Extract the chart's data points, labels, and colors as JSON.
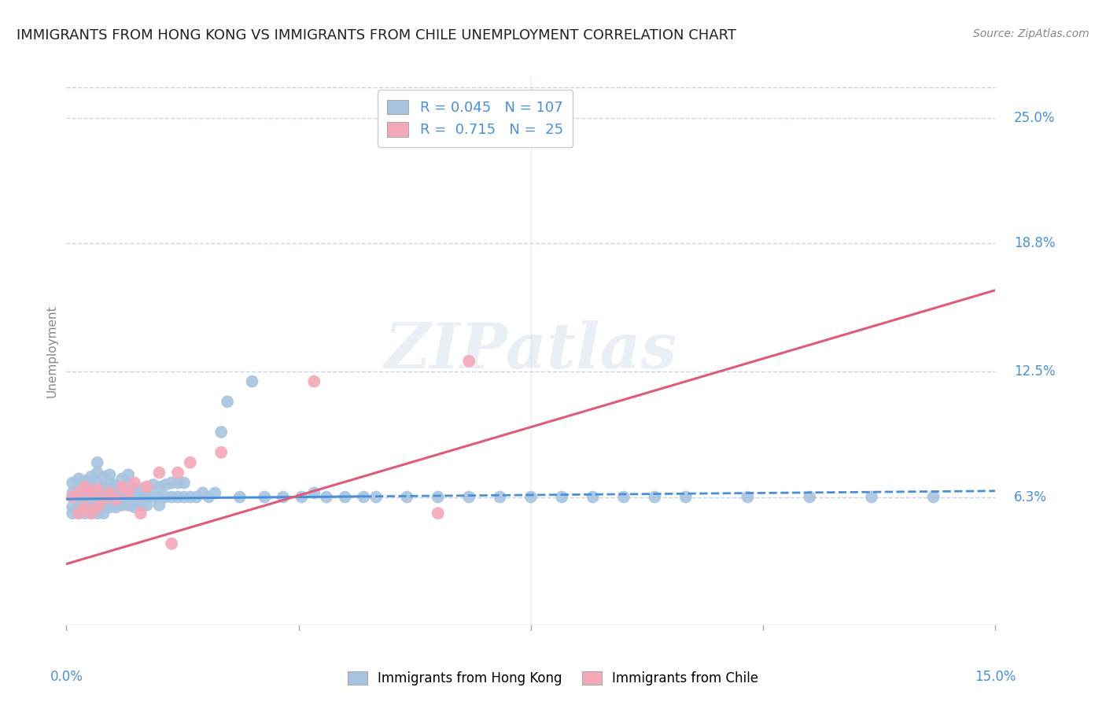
{
  "title": "IMMIGRANTS FROM HONG KONG VS IMMIGRANTS FROM CHILE UNEMPLOYMENT CORRELATION CHART",
  "source": "Source: ZipAtlas.com",
  "ylabel": "Unemployment",
  "ytick_labels": [
    "6.3%",
    "12.5%",
    "18.8%",
    "25.0%"
  ],
  "ytick_values": [
    0.063,
    0.125,
    0.188,
    0.25
  ],
  "xmin": 0.0,
  "xmax": 0.15,
  "ymin": 0.0,
  "ymax": 0.27,
  "color_hk": "#a8c4e0",
  "color_chile": "#f4a8b8",
  "color_hk_line": "#4a90d9",
  "color_chile_line": "#e05a7a",
  "color_axis_text": "#4a90d9",
  "watermark_text": "ZIPatlas",
  "hk_R": 0.045,
  "hk_N": 107,
  "chile_R": 0.715,
  "chile_N": 25,
  "hk_x": [
    0.001,
    0.001,
    0.001,
    0.001,
    0.001,
    0.002,
    0.002,
    0.002,
    0.002,
    0.002,
    0.003,
    0.003,
    0.003,
    0.003,
    0.003,
    0.003,
    0.003,
    0.004,
    0.004,
    0.004,
    0.004,
    0.004,
    0.004,
    0.005,
    0.005,
    0.005,
    0.005,
    0.005,
    0.005,
    0.005,
    0.006,
    0.006,
    0.006,
    0.006,
    0.006,
    0.006,
    0.007,
    0.007,
    0.007,
    0.007,
    0.007,
    0.008,
    0.008,
    0.008,
    0.008,
    0.009,
    0.009,
    0.009,
    0.009,
    0.01,
    0.01,
    0.01,
    0.01,
    0.01,
    0.011,
    0.011,
    0.011,
    0.012,
    0.012,
    0.012,
    0.013,
    0.013,
    0.013,
    0.014,
    0.014,
    0.015,
    0.015,
    0.015,
    0.016,
    0.016,
    0.017,
    0.017,
    0.018,
    0.018,
    0.019,
    0.019,
    0.02,
    0.021,
    0.022,
    0.023,
    0.024,
    0.025,
    0.026,
    0.028,
    0.03,
    0.032,
    0.035,
    0.038,
    0.04,
    0.042,
    0.045,
    0.048,
    0.05,
    0.055,
    0.06,
    0.065,
    0.07,
    0.075,
    0.08,
    0.085,
    0.09,
    0.095,
    0.1,
    0.11,
    0.12,
    0.13,
    0.14
  ],
  "hk_y": [
    0.063,
    0.058,
    0.065,
    0.07,
    0.055,
    0.063,
    0.06,
    0.067,
    0.055,
    0.072,
    0.063,
    0.058,
    0.065,
    0.06,
    0.068,
    0.055,
    0.071,
    0.063,
    0.058,
    0.066,
    0.07,
    0.055,
    0.073,
    0.063,
    0.058,
    0.066,
    0.07,
    0.075,
    0.055,
    0.08,
    0.063,
    0.059,
    0.065,
    0.068,
    0.073,
    0.055,
    0.063,
    0.058,
    0.066,
    0.07,
    0.074,
    0.063,
    0.058,
    0.065,
    0.069,
    0.063,
    0.059,
    0.067,
    0.072,
    0.063,
    0.059,
    0.065,
    0.069,
    0.074,
    0.063,
    0.058,
    0.067,
    0.063,
    0.059,
    0.067,
    0.063,
    0.059,
    0.068,
    0.063,
    0.069,
    0.063,
    0.059,
    0.068,
    0.063,
    0.069,
    0.063,
    0.07,
    0.063,
    0.07,
    0.063,
    0.07,
    0.063,
    0.063,
    0.065,
    0.063,
    0.065,
    0.095,
    0.11,
    0.063,
    0.12,
    0.063,
    0.063,
    0.063,
    0.065,
    0.063,
    0.063,
    0.063,
    0.063,
    0.063,
    0.063,
    0.063,
    0.063,
    0.063,
    0.063,
    0.063,
    0.063,
    0.063,
    0.063,
    0.063,
    0.063,
    0.063,
    0.063
  ],
  "chile_x": [
    0.001,
    0.002,
    0.002,
    0.003,
    0.003,
    0.004,
    0.004,
    0.005,
    0.005,
    0.006,
    0.007,
    0.008,
    0.009,
    0.01,
    0.011,
    0.012,
    0.013,
    0.015,
    0.017,
    0.018,
    0.02,
    0.025,
    0.04,
    0.06,
    0.065
  ],
  "chile_y": [
    0.063,
    0.055,
    0.065,
    0.058,
    0.068,
    0.055,
    0.065,
    0.058,
    0.067,
    0.062,
    0.065,
    0.062,
    0.068,
    0.065,
    0.07,
    0.055,
    0.068,
    0.075,
    0.04,
    0.075,
    0.08,
    0.085,
    0.12,
    0.055,
    0.13
  ],
  "hk_trendline_x": [
    0.0,
    0.15
  ],
  "hk_trendline_y": [
    0.062,
    0.066
  ],
  "chile_trendline_x": [
    0.0,
    0.15
  ],
  "chile_trendline_y": [
    0.03,
    0.165
  ],
  "grid_color": "#c8d4e8",
  "background_color": "#ffffff",
  "title_fontsize": 13,
  "axis_label_fontsize": 11,
  "tick_fontsize": 12,
  "legend_fontsize": 13
}
